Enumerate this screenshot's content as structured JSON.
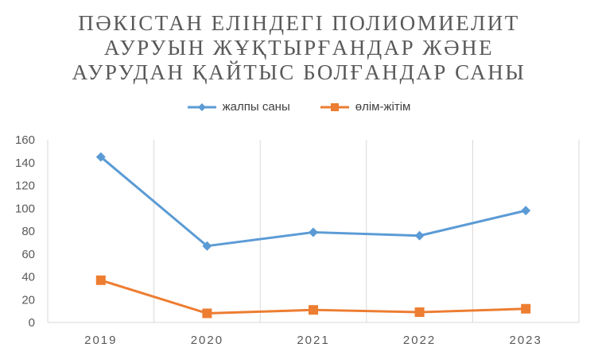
{
  "chart_data": {
    "type": "line",
    "title_lines": [
      "ПӘКІСТАН ЕЛІНДЕГІ ПОЛИОМИЕЛИТ",
      "АУРУЫН ЖҰҚТЫРҒАНДАР ЖӘНЕ",
      "АУРУДАН ҚАЙТЫС БОЛҒАНДАР САНЫ"
    ],
    "categories": [
      "2019",
      "2020",
      "2021",
      "2022",
      "2023"
    ],
    "series": [
      {
        "name": "жалпы саны",
        "values": [
          145,
          67,
          79,
          76,
          98
        ],
        "color": "#5B9BD5",
        "marker": "diamond"
      },
      {
        "name": "өлім-жітім",
        "values": [
          37,
          8,
          11,
          9,
          12
        ],
        "color": "#ED7D31",
        "marker": "square"
      }
    ],
    "ylim": [
      0,
      160
    ],
    "yticks": [
      "0",
      "20",
      "40",
      "60",
      "80",
      "100",
      "120",
      "140",
      "160"
    ],
    "grid": "vertical",
    "legend_position": "top"
  }
}
